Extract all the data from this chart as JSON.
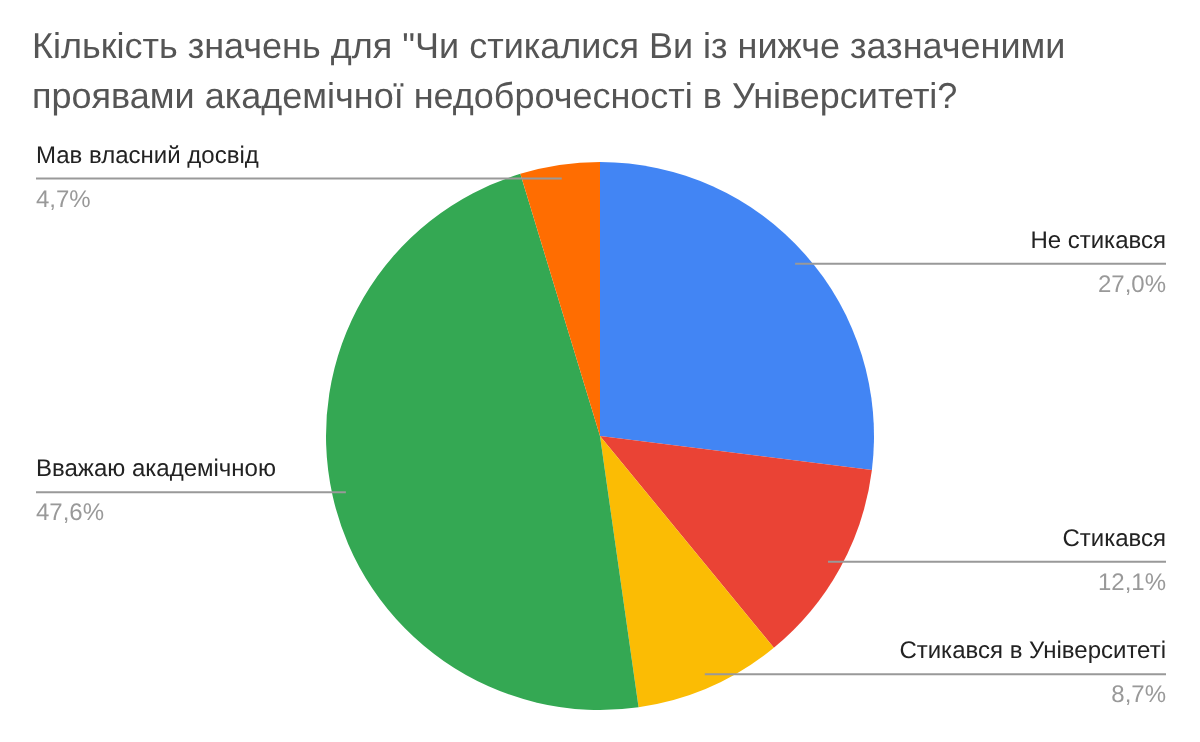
{
  "chart_data": {
    "type": "pie",
    "title": "Кількість значень для \"Чи стикалися Ви із нижче зазначеними проявами академічної недоброчесності в Університеті?",
    "categories": [
      "Не стикався",
      "Стикався",
      "Стикався в Університеті",
      "Вважаю академічною",
      "Мав власний досвід"
    ],
    "values": [
      27.0,
      12.1,
      8.7,
      47.6,
      4.7
    ],
    "colors": [
      "#4285f4",
      "#ea4335",
      "#fbbc04",
      "#34a853",
      "#ff6d01"
    ],
    "value_labels": [
      "27,0%",
      "12,1%",
      "8,7%",
      "47,6%",
      "4,7%"
    ],
    "legend": false
  }
}
